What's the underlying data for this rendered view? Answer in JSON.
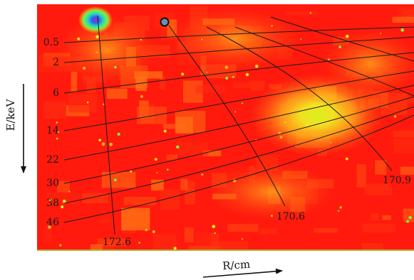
{
  "chart_data": {
    "type": "heatmap",
    "title": "",
    "xlabel": "R/cm",
    "ylabel": "E/keV",
    "energy_contours_keV": [
      "0.5",
      "2",
      "6",
      "14",
      "22",
      "30",
      "38",
      "46"
    ],
    "radius_contours_cm": [
      "172.6",
      "170.6",
      "170.9"
    ],
    "colormap": [
      "#ff1a0d",
      "#ff4f10",
      "#ff8a17",
      "#ffc21c",
      "#f4ef22",
      "#7df03c",
      "#22d4c8",
      "#2f62e6",
      "#b01cd8"
    ],
    "contour_color": "#1a1a1a",
    "marker_color": "#6d8fb6",
    "grid": false
  }
}
